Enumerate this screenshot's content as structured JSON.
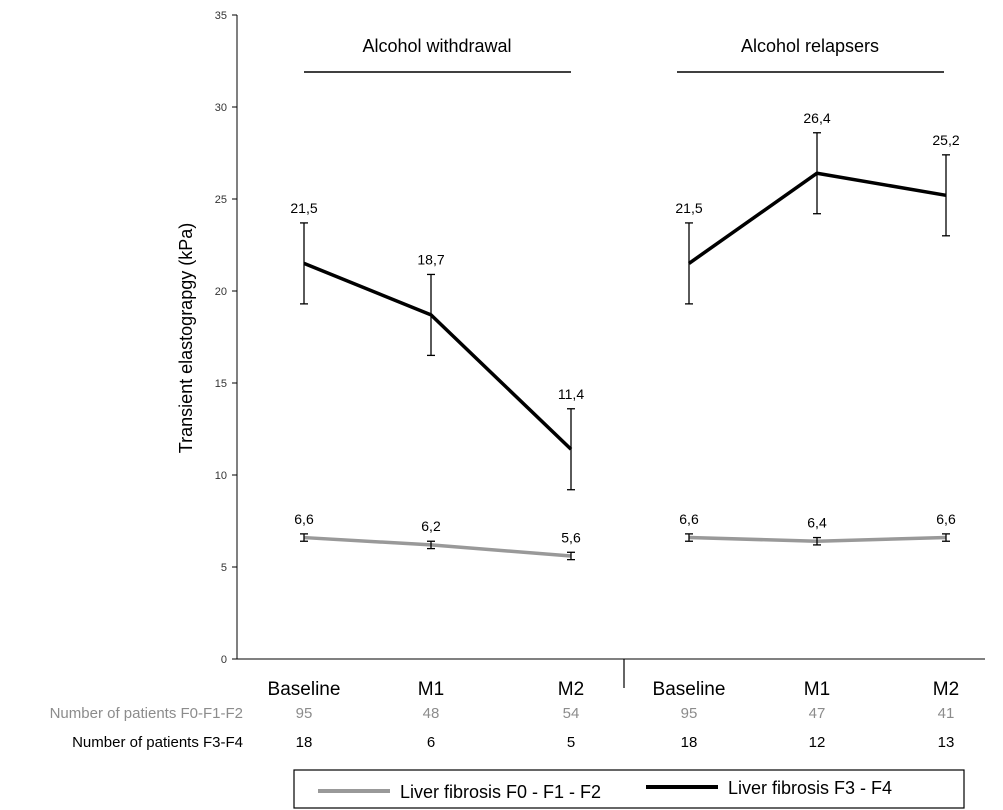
{
  "chart_data": {
    "type": "line",
    "ylabel": "Transient elastograpgy (kPa)",
    "ylim": [
      0,
      35
    ],
    "yticks": [
      0,
      5,
      10,
      15,
      20,
      25,
      30,
      35
    ],
    "grid": false,
    "legend_position": "bottom",
    "groups": [
      {
        "label": "Alcohol withdrawal",
        "categories": [
          "Baseline",
          "M1",
          "M2"
        ],
        "series": [
          {
            "name": "Liver fibrosis F0 - F1 - F2",
            "color": "#999999",
            "values": [
              6.6,
              6.2,
              5.6
            ],
            "labels": [
              "6,6",
              "6,2",
              "5,6"
            ],
            "error": [
              0.2,
              0.2,
              0.2
            ]
          },
          {
            "name": "Liver fibrosis F3 - F4",
            "color": "#000000",
            "values": [
              21.5,
              18.7,
              11.4
            ],
            "labels": [
              "21,5",
              "18,7",
              "11,4"
            ],
            "error": [
              2.2,
              2.2,
              2.2
            ]
          }
        ],
        "counts_f0_f2": [
          "95",
          "48",
          "54"
        ],
        "counts_f3_f4": [
          "18",
          "6",
          "5"
        ]
      },
      {
        "label": "Alcohol relapsers",
        "categories": [
          "Baseline",
          "M1",
          "M2"
        ],
        "series": [
          {
            "name": "Liver fibrosis F0 - F1 - F2",
            "color": "#999999",
            "values": [
              6.6,
              6.4,
              6.6
            ],
            "labels": [
              "6,6",
              "6,4",
              "6,6"
            ],
            "error": [
              0.2,
              0.2,
              0.2
            ]
          },
          {
            "name": "Liver fibrosis F3 - F4",
            "color": "#000000",
            "values": [
              21.5,
              26.4,
              25.2
            ],
            "labels": [
              "21,5",
              "26,4",
              "25,2"
            ],
            "error": [
              2.2,
              2.2,
              2.2
            ]
          }
        ],
        "counts_f0_f2": [
          "95",
          "47",
          "41"
        ],
        "counts_f3_f4": [
          "18",
          "12",
          "13"
        ]
      }
    ],
    "row_labels": {
      "f0_f2": "Number of patients F0-F1-F2",
      "f3_f4": "Number of patients F3-F4"
    },
    "legend": [
      {
        "label": "Liver fibrosis F0 - F1 - F2",
        "color": "#999999"
      },
      {
        "label": "Liver fibrosis F3 - F4",
        "color": "#000000"
      }
    ]
  }
}
